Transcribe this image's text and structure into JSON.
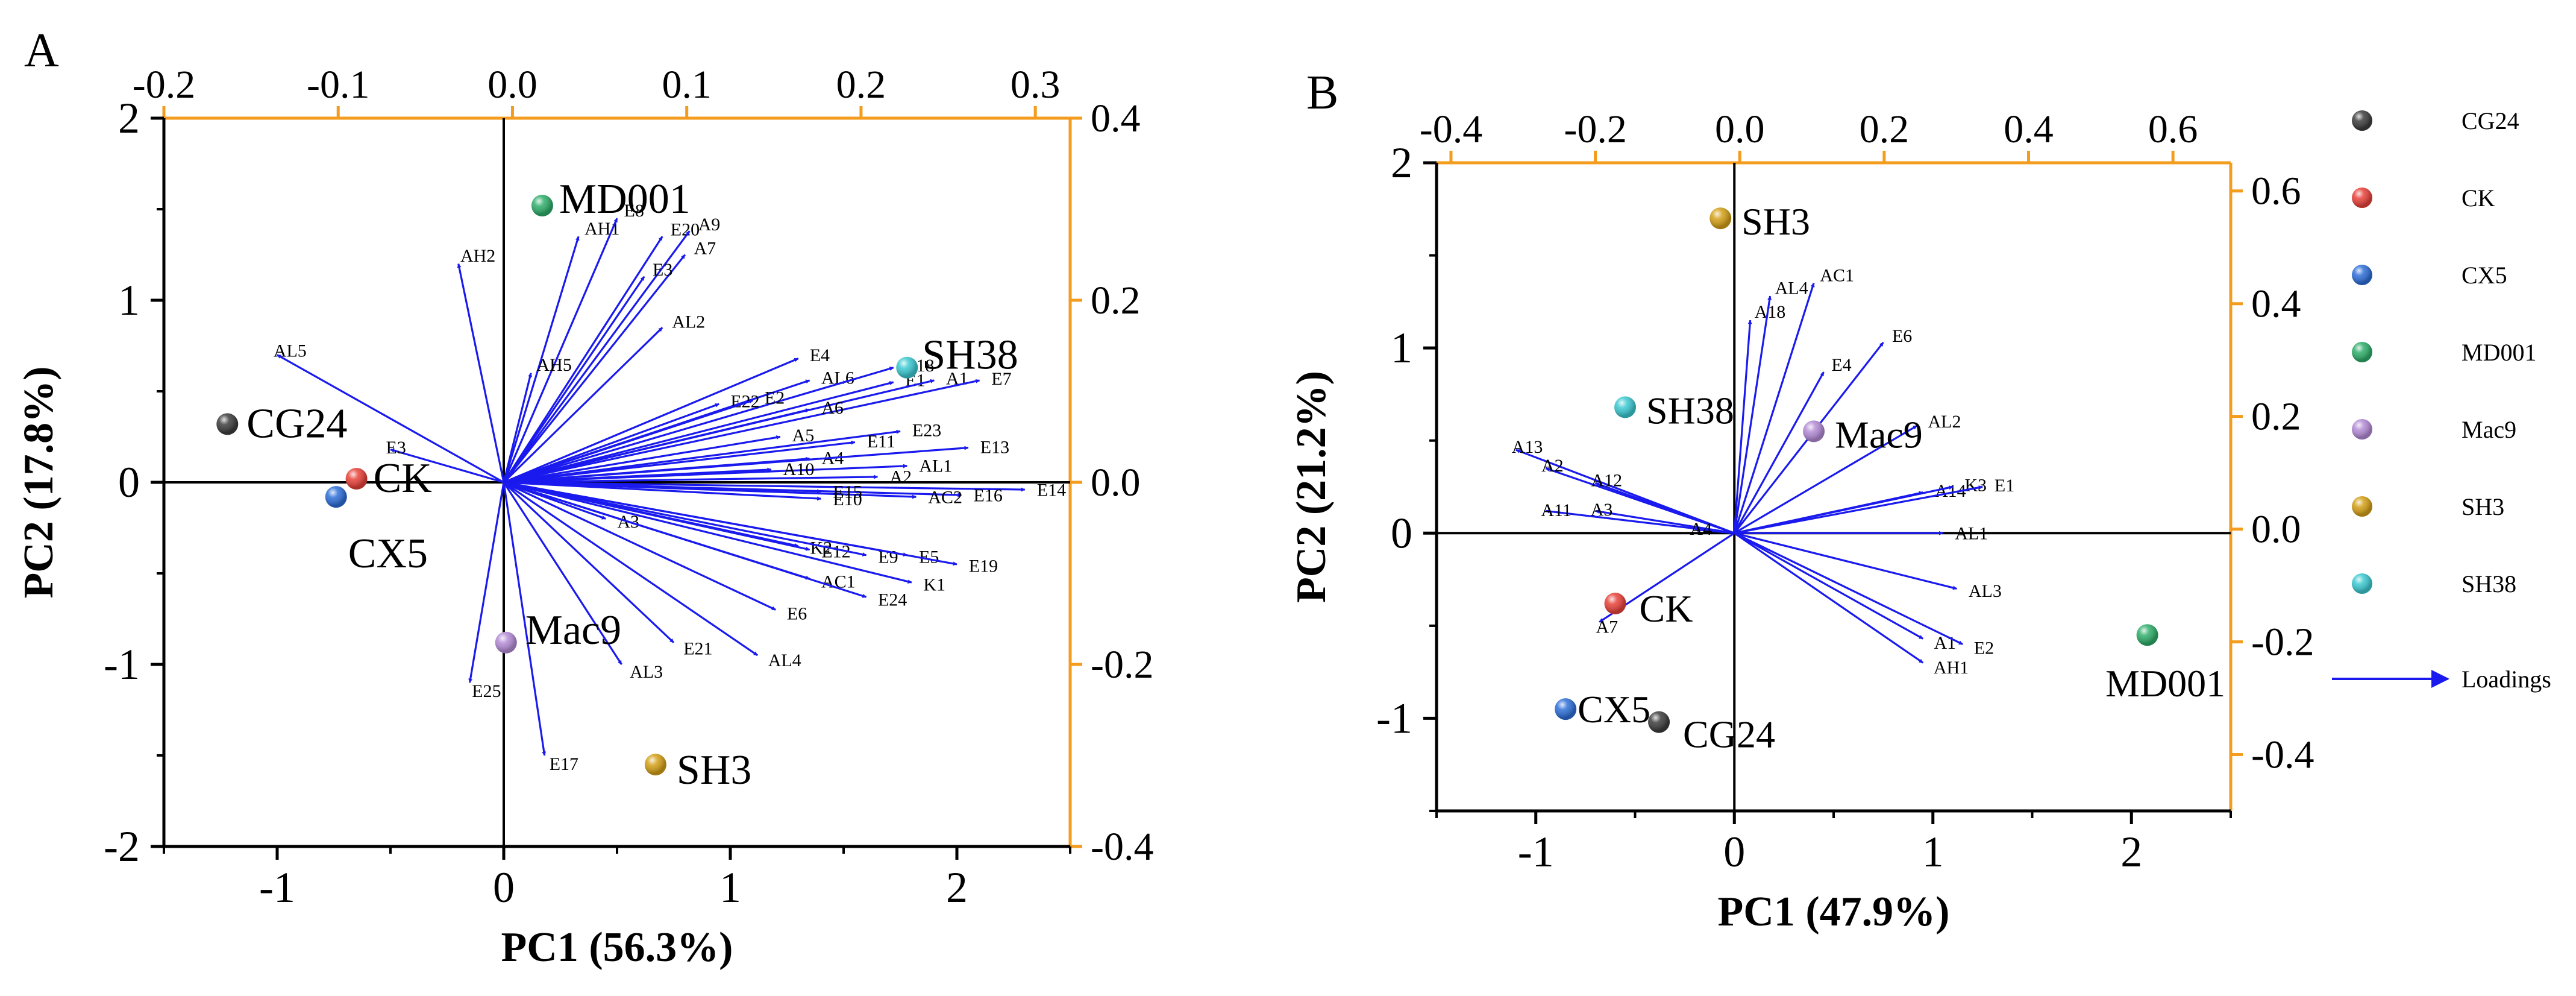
{
  "figure": {
    "colors": {
      "axis_secondary": "#f39c1e",
      "loadings": "#1a1aee",
      "axis": "#000000"
    }
  },
  "chart_data": [
    {
      "type": "scatter",
      "panel_label": "A",
      "xlabel": "PC1 (56.3%)",
      "ylabel": "PC2 (17.8%)",
      "xlim": [
        -1.5,
        2.5
      ],
      "ylim": [
        -2,
        2
      ],
      "xticks": [
        "-1",
        "0",
        "1",
        "2"
      ],
      "yticks": [
        "-2",
        "-1",
        "0",
        "1",
        "2"
      ],
      "loading_xlim": [
        -0.2,
        0.32
      ],
      "loading_ylim": [
        -0.4,
        0.4
      ],
      "loading_xticks": [
        "-0.2",
        "-0.1",
        "0.0",
        "0.1",
        "0.2",
        "0.3"
      ],
      "loading_yticks": [
        "-0.4",
        "-0.2",
        "0.0",
        "0.2",
        "0.4"
      ],
      "samples": [
        {
          "name": "CG24",
          "x": -1.22,
          "y": 0.32,
          "color": "#3d3d3d"
        },
        {
          "name": "CK",
          "x": -0.65,
          "y": 0.02,
          "color": "#e8423a"
        },
        {
          "name": "CX5",
          "x": -0.74,
          "y": -0.08,
          "color": "#2e6fd8"
        },
        {
          "name": "MD001",
          "x": 0.17,
          "y": 1.52,
          "color": "#2fae6a"
        },
        {
          "name": "Mac9",
          "x": 0.01,
          "y": -0.88,
          "color": "#b48bd6"
        },
        {
          "name": "SH3",
          "x": 0.67,
          "y": -1.55,
          "color": "#d4a017"
        },
        {
          "name": "SH38",
          "x": 1.78,
          "y": 0.63,
          "color": "#3cc9d1"
        }
      ],
      "loadings": [
        {
          "name": "AL5",
          "x": -1.0,
          "y": 0.7
        },
        {
          "name": "AH2",
          "x": -0.2,
          "y": 1.2
        },
        {
          "name": "E3",
          "x": -0.5,
          "y": 0.18
        },
        {
          "name": "AH1",
          "x": 0.33,
          "y": 1.35
        },
        {
          "name": "E8",
          "x": 0.5,
          "y": 1.45
        },
        {
          "name": "E20",
          "x": 0.7,
          "y": 1.35
        },
        {
          "name": "A9",
          "x": 0.82,
          "y": 1.38
        },
        {
          "name": "A7",
          "x": 0.8,
          "y": 1.25
        },
        {
          "name": "E3",
          "x": 0.62,
          "y": 1.13
        },
        {
          "name": "AL2",
          "x": 0.7,
          "y": 0.85
        },
        {
          "name": "AH5",
          "x": 0.12,
          "y": 0.6
        },
        {
          "name": "E4",
          "x": 1.3,
          "y": 0.68
        },
        {
          "name": "AL6",
          "x": 1.35,
          "y": 0.56
        },
        {
          "name": "E18",
          "x": 1.72,
          "y": 0.63
        },
        {
          "name": "E1",
          "x": 1.72,
          "y": 0.55
        },
        {
          "name": "A1",
          "x": 1.9,
          "y": 0.56
        },
        {
          "name": "E7",
          "x": 2.1,
          "y": 0.56
        },
        {
          "name": "E22",
          "x": 0.95,
          "y": 0.43
        },
        {
          "name": "E2",
          "x": 1.1,
          "y": 0.45
        },
        {
          "name": "A6",
          "x": 1.35,
          "y": 0.4
        },
        {
          "name": "A5",
          "x": 1.22,
          "y": 0.25
        },
        {
          "name": "E23",
          "x": 1.75,
          "y": 0.28
        },
        {
          "name": "E11",
          "x": 1.55,
          "y": 0.22
        },
        {
          "name": "A4",
          "x": 1.35,
          "y": 0.13
        },
        {
          "name": "AL1",
          "x": 1.78,
          "y": 0.09
        },
        {
          "name": "E13",
          "x": 2.05,
          "y": 0.19
        },
        {
          "name": "A10",
          "x": 1.18,
          "y": 0.07
        },
        {
          "name": "A2",
          "x": 1.65,
          "y": 0.03
        },
        {
          "name": "E14",
          "x": 2.3,
          "y": -0.04
        },
        {
          "name": "E16",
          "x": 2.02,
          "y": -0.07
        },
        {
          "name": "AC2",
          "x": 1.82,
          "y": -0.08
        },
        {
          "name": "E15",
          "x": 1.4,
          "y": -0.05
        },
        {
          "name": "E10",
          "x": 1.4,
          "y": -0.09
        },
        {
          "name": "A3",
          "x": 0.45,
          "y": -0.2
        },
        {
          "name": "K2",
          "x": 1.3,
          "y": -0.35
        },
        {
          "name": "E12",
          "x": 1.35,
          "y": -0.37
        },
        {
          "name": "E9",
          "x": 1.6,
          "y": -0.4
        },
        {
          "name": "E5",
          "x": 1.78,
          "y": -0.4
        },
        {
          "name": "E19",
          "x": 2.0,
          "y": -0.45
        },
        {
          "name": "AC1",
          "x": 1.35,
          "y": -0.53
        },
        {
          "name": "K1",
          "x": 1.8,
          "y": -0.55
        },
        {
          "name": "E24",
          "x": 1.6,
          "y": -0.63
        },
        {
          "name": "E6",
          "x": 1.2,
          "y": -0.7
        },
        {
          "name": "AL4",
          "x": 1.12,
          "y": -0.95
        },
        {
          "name": "E21",
          "x": 0.75,
          "y": -0.88
        },
        {
          "name": "AL3",
          "x": 0.52,
          "y": -1.0
        },
        {
          "name": "E25",
          "x": -0.15,
          "y": -1.1
        },
        {
          "name": "E17",
          "x": 0.18,
          "y": -1.5
        }
      ]
    },
    {
      "type": "scatter",
      "panel_label": "B",
      "xlabel": "PC1 (47.9%)",
      "ylabel": "PC2 (21.2%)",
      "xlim": [
        -1.5,
        2.5
      ],
      "ylim": [
        -1.5,
        2
      ],
      "xticks": [
        "-1",
        "0",
        "1",
        "2"
      ],
      "yticks": [
        "-1",
        "0",
        "1",
        "2"
      ],
      "loading_xlim": [
        -0.42,
        0.68
      ],
      "loading_ylim": [
        -0.5,
        0.65
      ],
      "loading_xticks": [
        "-0.4",
        "-0.2",
        "0.0",
        "0.2",
        "0.4",
        "0.6"
      ],
      "loading_yticks": [
        "-0.4",
        "-0.2",
        "0.0",
        "0.2",
        "0.4",
        "0.6"
      ],
      "samples": [
        {
          "name": "CG24",
          "x": -0.38,
          "y": -1.02,
          "color": "#3d3d3d"
        },
        {
          "name": "CK",
          "x": -0.6,
          "y": -0.38,
          "color": "#e8423a"
        },
        {
          "name": "CX5",
          "x": -0.85,
          "y": -0.95,
          "color": "#2e6fd8"
        },
        {
          "name": "MD001",
          "x": 2.08,
          "y": -0.55,
          "color": "#2fae6a"
        },
        {
          "name": "Mac9",
          "x": 0.4,
          "y": 0.55,
          "color": "#b48bd6"
        },
        {
          "name": "SH3",
          "x": -0.07,
          "y": 1.7,
          "color": "#d4a017"
        },
        {
          "name": "SH38",
          "x": -0.55,
          "y": 0.68,
          "color": "#3cc9d1"
        }
      ],
      "loadings": [
        {
          "name": "A13",
          "x": -1.1,
          "y": 0.45
        },
        {
          "name": "A2",
          "x": -0.95,
          "y": 0.35
        },
        {
          "name": "A12",
          "x": -0.7,
          "y": 0.27
        },
        {
          "name": "A11",
          "x": -0.95,
          "y": 0.12
        },
        {
          "name": "A3",
          "x": -0.7,
          "y": 0.12
        },
        {
          "name": "A4",
          "x": -0.2,
          "y": 0.02
        },
        {
          "name": "A7",
          "x": -0.68,
          "y": -0.48
        },
        {
          "name": "A18",
          "x": 0.08,
          "y": 1.15
        },
        {
          "name": "AL4",
          "x": 0.18,
          "y": 1.28
        },
        {
          "name": "AC1",
          "x": 0.4,
          "y": 1.35
        },
        {
          "name": "E4",
          "x": 0.45,
          "y": 0.87
        },
        {
          "name": "E6",
          "x": 0.75,
          "y": 1.03
        },
        {
          "name": "AL2",
          "x": 0.92,
          "y": 0.58
        },
        {
          "name": "A14",
          "x": 0.95,
          "y": 0.22
        },
        {
          "name": "K3",
          "x": 1.1,
          "y": 0.25
        },
        {
          "name": "E1",
          "x": 1.25,
          "y": 0.25
        },
        {
          "name": "AL1",
          "x": 1.05,
          "y": 0.0
        },
        {
          "name": "AL3",
          "x": 1.12,
          "y": -0.3
        },
        {
          "name": "A1",
          "x": 0.95,
          "y": -0.57
        },
        {
          "name": "E2",
          "x": 1.15,
          "y": -0.6
        },
        {
          "name": "AH1",
          "x": 0.95,
          "y": -0.7
        }
      ]
    }
  ],
  "legend": {
    "items": [
      {
        "label": "CG24",
        "color": "#3d3d3d"
      },
      {
        "label": "CK",
        "color": "#e8423a"
      },
      {
        "label": "CX5",
        "color": "#2e6fd8"
      },
      {
        "label": "MD001",
        "color": "#2fae6a"
      },
      {
        "label": "Mac9",
        "color": "#b48bd6"
      },
      {
        "label": "SH3",
        "color": "#d4a017"
      },
      {
        "label": "SH38",
        "color": "#3cc9d1"
      }
    ],
    "loadings_label": "Loadings"
  }
}
